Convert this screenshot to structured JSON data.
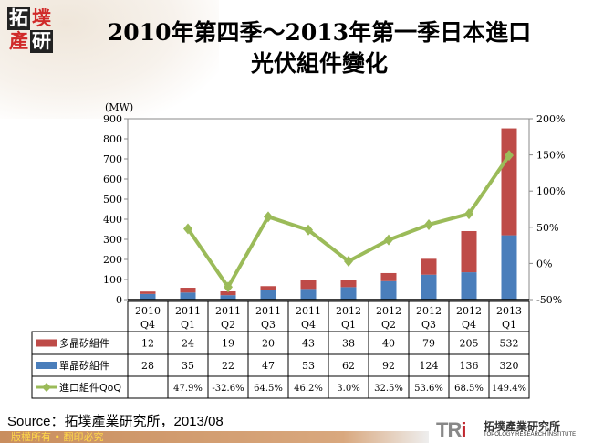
{
  "header": {
    "logo_chars": [
      "拓",
      "墣",
      "產",
      "研"
    ],
    "title_line1": "2010年第四季～2013年第一季日本進口",
    "title_line2": "光伏組件變化"
  },
  "chart_data": {
    "type": "bar",
    "stacked": true,
    "title": "2010年第四季～2013年第一季日本進口光伏組件變化",
    "ylabel": "(MW)",
    "ylim": [
      0,
      900
    ],
    "yticks": [
      "0",
      "100",
      "200",
      "300",
      "400",
      "500",
      "600",
      "700",
      "800",
      "900"
    ],
    "y2lim": [
      -50,
      200
    ],
    "y2ticks": [
      "-50%",
      "0%",
      "50%",
      "100%",
      "150%",
      "200%"
    ],
    "categories": [
      [
        "2010",
        "Q4"
      ],
      [
        "2011",
        "Q1"
      ],
      [
        "2011",
        "Q2"
      ],
      [
        "2011",
        "Q3"
      ],
      [
        "2011",
        "Q4"
      ],
      [
        "2012",
        "Q1"
      ],
      [
        "2012",
        "Q2"
      ],
      [
        "2012",
        "Q3"
      ],
      [
        "2012",
        "Q4"
      ],
      [
        "2013",
        "Q1"
      ]
    ],
    "series": [
      {
        "name": "單晶矽組件",
        "type": "bar",
        "color": "#4a7ebb",
        "values": [
          28,
          35,
          22,
          47,
          53,
          62,
          92,
          124,
          136,
          320
        ],
        "labels": [
          "28",
          "35",
          "22",
          "47",
          "53",
          "62",
          "92",
          "124",
          "136",
          "320"
        ]
      },
      {
        "name": "多晶矽組件",
        "type": "bar",
        "color": "#be4b48",
        "values": [
          12,
          24,
          19,
          20,
          43,
          38,
          40,
          79,
          205,
          532
        ],
        "labels": [
          "12",
          "24",
          "19",
          "20",
          "43",
          "38",
          "40",
          "79",
          "205",
          "532"
        ]
      },
      {
        "name": "進口組件QoQ",
        "type": "line",
        "axis": "right",
        "color": "#9bbb59",
        "values": [
          null,
          47.9,
          -32.6,
          64.5,
          46.2,
          3.0,
          32.5,
          53.6,
          68.5,
          149.4
        ],
        "labels": [
          "",
          "47.9%",
          "-32.6%",
          "64.5%",
          "46.2%",
          "3.0%",
          "32.5%",
          "53.6%",
          "68.5%",
          "149.4%"
        ]
      }
    ],
    "table_row_order": [
      1,
      0,
      2
    ],
    "legend": "data-table"
  },
  "source": "Source：拓墣產業研究所，2013/08",
  "footer": {
    "copyright": "版權所有 • 翻印必究",
    "brand_tri": "TRi",
    "brand_cn": "拓墣產業研究所",
    "brand_en": "TOPOLOGY RESEARCH INSTITUTE"
  }
}
